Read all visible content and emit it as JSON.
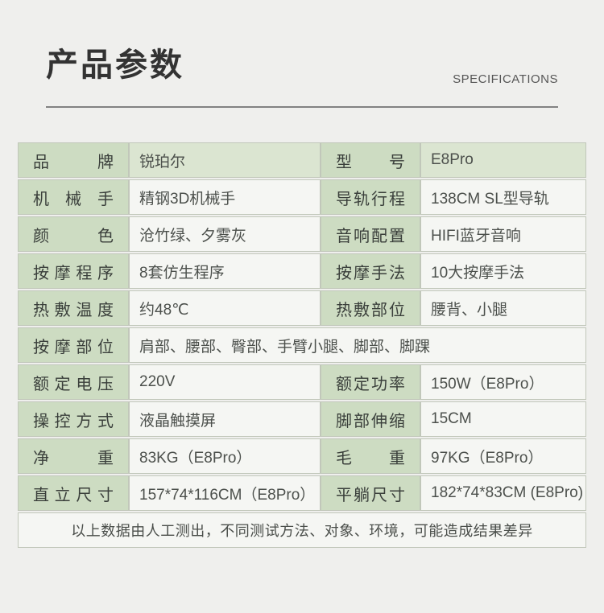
{
  "header": {
    "title": "产品参数",
    "subtitle": "SPECIFICATIONS"
  },
  "colors": {
    "page_bg": "#efefed",
    "label_green": "#cddcc2",
    "highlight_green": "#dbe5d1",
    "value_bg": "#f5f6f3",
    "cell_border": "#c1c7ba",
    "divider": "#828282"
  },
  "table": {
    "rows": [
      {
        "highlight": true,
        "cells": [
          {
            "label": "品牌",
            "value": "锐珀尔"
          },
          {
            "label": "型号",
            "value": "E8Pro"
          }
        ]
      },
      {
        "highlight": false,
        "cells": [
          {
            "label": "机械手",
            "value": "精钢3D机械手"
          },
          {
            "label": "导轨行程",
            "value": "138CM SL型导轨"
          }
        ]
      },
      {
        "highlight": false,
        "cells": [
          {
            "label": "颜色",
            "value": "沧竹绿、夕雾灰"
          },
          {
            "label": "音响配置",
            "value": "HIFI蓝牙音响"
          }
        ]
      },
      {
        "highlight": false,
        "cells": [
          {
            "label": "按摩程序",
            "value": "8套仿生程序"
          },
          {
            "label": "按摩手法",
            "value": "10大按摩手法"
          }
        ]
      },
      {
        "highlight": false,
        "cells": [
          {
            "label": "热敷温度",
            "value": "约48℃"
          },
          {
            "label": "热敷部位",
            "value": "腰背、小腿"
          }
        ]
      },
      {
        "highlight": false,
        "span": true,
        "cells": [
          {
            "label": "按摩部位",
            "value": "肩部、腰部、臀部、手臂小腿、脚部、脚踝"
          }
        ]
      },
      {
        "highlight": false,
        "cells": [
          {
            "label": "额定电压",
            "value": "220V"
          },
          {
            "label": "额定功率",
            "value": "150W（E8Pro）"
          }
        ]
      },
      {
        "highlight": false,
        "cells": [
          {
            "label": "操控方式",
            "value": "液晶触摸屏"
          },
          {
            "label": "脚部伸缩",
            "value": "15CM"
          }
        ]
      },
      {
        "highlight": false,
        "cells": [
          {
            "label": "净重",
            "value": "83KG（E8Pro）"
          },
          {
            "label": "毛重",
            "value": "97KG（E8Pro）"
          }
        ]
      },
      {
        "highlight": false,
        "cells": [
          {
            "label": "直立尺寸",
            "value": "157*74*116CM（E8Pro）"
          },
          {
            "label": "平躺尺寸",
            "value": "182*74*83CM (E8Pro)"
          }
        ]
      }
    ],
    "footer_note": "以上数据由人工测出，不同测试方法、对象、环境，可能造成结果差异"
  }
}
